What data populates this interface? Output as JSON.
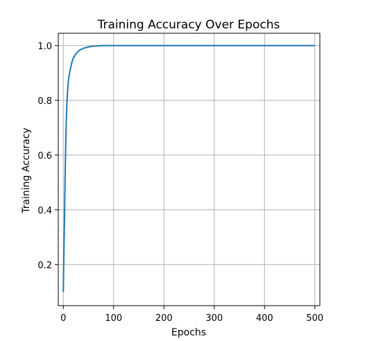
{
  "chart_data": {
    "type": "line",
    "title": "Training Accuracy Over Epochs",
    "xlabel": "Epochs",
    "ylabel": "Training Accuracy",
    "xlim": [
      -10,
      510
    ],
    "ylim": [
      0.05,
      1.045
    ],
    "xticks": [
      0,
      100,
      200,
      300,
      400,
      500
    ],
    "yticks": [
      0.2,
      0.4,
      0.6,
      0.8,
      1.0
    ],
    "xtick_labels": [
      "0",
      "100",
      "200",
      "300",
      "400",
      "500"
    ],
    "ytick_labels": [
      "0.2",
      "0.4",
      "0.6",
      "0.8",
      "1.0"
    ],
    "grid": true,
    "series": [
      {
        "color": "#1f77b4",
        "x": [
          0,
          1,
          2,
          3,
          4,
          5,
          6,
          7,
          8,
          9,
          10,
          12,
          14,
          16,
          18,
          20,
          25,
          30,
          35,
          40,
          50,
          60,
          70,
          80,
          90,
          100,
          150,
          200,
          250,
          300,
          350,
          400,
          450,
          500
        ],
        "y": [
          0.1,
          0.22,
          0.33,
          0.45,
          0.56,
          0.66,
          0.73,
          0.78,
          0.82,
          0.85,
          0.87,
          0.895,
          0.915,
          0.93,
          0.945,
          0.955,
          0.97,
          0.98,
          0.986,
          0.99,
          0.995,
          0.998,
          0.999,
          1.0,
          1.0,
          1.0,
          1.0,
          1.0,
          1.0,
          1.0,
          1.0,
          1.0,
          1.0,
          1.0
        ]
      }
    ]
  }
}
